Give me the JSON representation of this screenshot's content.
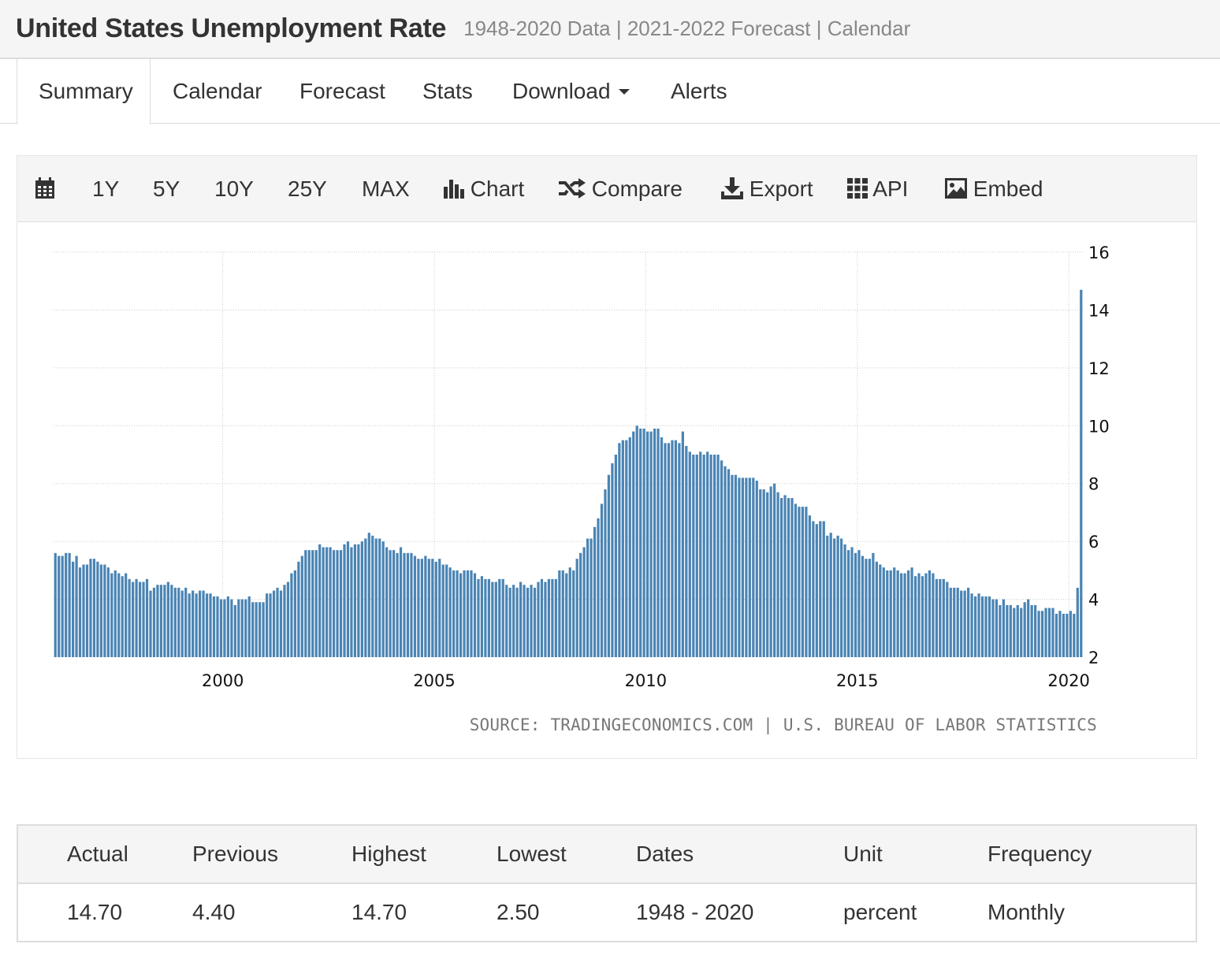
{
  "header": {
    "title": "United States Unemployment Rate",
    "subtitle": "1948-2020 Data | 2021-2022 Forecast | Calendar"
  },
  "tabs": [
    {
      "label": "Summary",
      "active": true
    },
    {
      "label": "Calendar"
    },
    {
      "label": "Forecast"
    },
    {
      "label": "Stats"
    },
    {
      "label": "Download",
      "has_dropdown": true
    },
    {
      "label": "Alerts"
    }
  ],
  "toolbar": {
    "calendar_icon": "calendar-icon",
    "ranges": [
      "1Y",
      "5Y",
      "10Y",
      "25Y",
      "MAX"
    ],
    "chart_label": "Chart",
    "compare_label": "Compare",
    "export_label": "Export",
    "api_label": "API",
    "embed_label": "Embed"
  },
  "colors": {
    "bar": "#4a84b4",
    "grid": "#cccccc",
    "header_bg": "#f5f5f5"
  },
  "chart_data": {
    "type": "bar",
    "frequency": "monthly",
    "x_start": "1996-01",
    "x_ticks": [
      "2000",
      "2005",
      "2010",
      "2015",
      "2020"
    ],
    "y_ticks": [
      "2",
      "4",
      "6",
      "8",
      "10",
      "12",
      "14",
      "16"
    ],
    "ylim": [
      2,
      16
    ],
    "y_axis_side": "right",
    "grid": true,
    "source": "SOURCE: TRADINGECONOMICS.COM | U.S. BUREAU OF LABOR STATISTICS",
    "values": [
      5.6,
      5.5,
      5.5,
      5.6,
      5.6,
      5.3,
      5.5,
      5.1,
      5.2,
      5.2,
      5.4,
      5.4,
      5.3,
      5.2,
      5.2,
      5.1,
      4.9,
      5.0,
      4.9,
      4.8,
      4.9,
      4.7,
      4.6,
      4.7,
      4.6,
      4.6,
      4.7,
      4.3,
      4.4,
      4.5,
      4.5,
      4.5,
      4.6,
      4.5,
      4.4,
      4.4,
      4.3,
      4.4,
      4.2,
      4.3,
      4.2,
      4.3,
      4.3,
      4.2,
      4.2,
      4.1,
      4.1,
      4.0,
      4.0,
      4.1,
      4.0,
      3.8,
      4.0,
      4.0,
      4.0,
      4.1,
      3.9,
      3.9,
      3.9,
      3.9,
      4.2,
      4.2,
      4.3,
      4.4,
      4.3,
      4.5,
      4.6,
      4.9,
      5.0,
      5.3,
      5.5,
      5.7,
      5.7,
      5.7,
      5.7,
      5.9,
      5.8,
      5.8,
      5.8,
      5.7,
      5.7,
      5.7,
      5.9,
      6.0,
      5.8,
      5.9,
      5.9,
      6.0,
      6.1,
      6.3,
      6.2,
      6.1,
      6.1,
      6.0,
      5.8,
      5.7,
      5.7,
      5.6,
      5.8,
      5.6,
      5.6,
      5.6,
      5.5,
      5.4,
      5.4,
      5.5,
      5.4,
      5.4,
      5.3,
      5.4,
      5.2,
      5.2,
      5.1,
      5.0,
      5.0,
      4.9,
      5.0,
      5.0,
      5.0,
      4.9,
      4.7,
      4.8,
      4.7,
      4.7,
      4.6,
      4.6,
      4.7,
      4.7,
      4.5,
      4.4,
      4.5,
      4.4,
      4.6,
      4.5,
      4.4,
      4.5,
      4.4,
      4.6,
      4.7,
      4.6,
      4.7,
      4.7,
      4.7,
      5.0,
      5.0,
      4.9,
      5.1,
      5.0,
      5.4,
      5.6,
      5.8,
      6.1,
      6.1,
      6.5,
      6.8,
      7.3,
      7.8,
      8.3,
      8.7,
      9.0,
      9.4,
      9.5,
      9.5,
      9.6,
      9.8,
      10.0,
      9.9,
      9.9,
      9.8,
      9.8,
      9.9,
      9.9,
      9.6,
      9.4,
      9.4,
      9.5,
      9.5,
      9.4,
      9.8,
      9.3,
      9.1,
      9.0,
      9.0,
      9.1,
      9.0,
      9.1,
      9.0,
      9.0,
      9.0,
      8.8,
      8.6,
      8.5,
      8.3,
      8.3,
      8.2,
      8.2,
      8.2,
      8.2,
      8.2,
      8.1,
      7.8,
      7.8,
      7.7,
      7.9,
      8.0,
      7.7,
      7.5,
      7.6,
      7.5,
      7.5,
      7.3,
      7.2,
      7.2,
      7.2,
      6.9,
      6.7,
      6.6,
      6.7,
      6.7,
      6.2,
      6.3,
      6.1,
      6.2,
      6.1,
      5.9,
      5.7,
      5.8,
      5.6,
      5.7,
      5.5,
      5.4,
      5.4,
      5.6,
      5.3,
      5.2,
      5.1,
      5.0,
      5.0,
      5.1,
      5.0,
      4.9,
      4.9,
      5.0,
      5.1,
      4.8,
      4.9,
      4.8,
      4.9,
      5.0,
      4.9,
      4.7,
      4.7,
      4.7,
      4.6,
      4.4,
      4.4,
      4.4,
      4.3,
      4.3,
      4.4,
      4.2,
      4.1,
      4.2,
      4.1,
      4.1,
      4.1,
      4.0,
      4.0,
      3.8,
      4.0,
      3.8,
      3.8,
      3.7,
      3.8,
      3.7,
      3.9,
      4.0,
      3.8,
      3.8,
      3.6,
      3.6,
      3.7,
      3.7,
      3.7,
      3.5,
      3.6,
      3.5,
      3.5,
      3.6,
      3.5,
      4.4,
      14.7
    ]
  },
  "stats": {
    "headers": [
      "Actual",
      "Previous",
      "Highest",
      "Lowest",
      "Dates",
      "Unit",
      "Frequency"
    ],
    "values": [
      "14.70",
      "4.40",
      "14.70",
      "2.50",
      "1948 - 2020",
      "percent",
      "Monthly"
    ]
  }
}
